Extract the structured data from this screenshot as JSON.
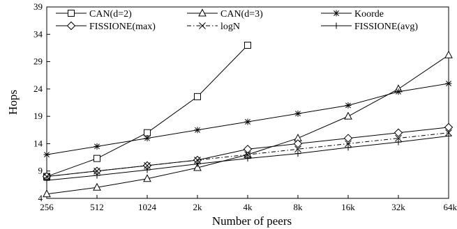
{
  "chart_data": {
    "type": "line",
    "title": "",
    "xlabel": "Number of peers",
    "ylabel": "Hops",
    "categories": [
      "256",
      "512",
      "1024",
      "2k",
      "4k",
      "8k",
      "16k",
      "32k",
      "64k"
    ],
    "ylim": [
      4,
      39
    ],
    "yticks": [
      4,
      9,
      14,
      19,
      24,
      29,
      34,
      39
    ],
    "grid": false,
    "legend_placement": "top-left",
    "series": [
      {
        "name": "CAN(d=2)",
        "marker": "square",
        "dash": "solid",
        "values": [
          8,
          11.3,
          16,
          22.6,
          32,
          null,
          null,
          null,
          null
        ]
      },
      {
        "name": "CAN(d=3)",
        "marker": "triangle",
        "dash": "solid",
        "values": [
          4.8,
          6,
          7.6,
          9.6,
          12,
          15,
          19,
          24,
          30.2
        ]
      },
      {
        "name": "Koorde",
        "marker": "asterisk",
        "dash": "solid",
        "values": [
          12,
          13.5,
          15,
          16.5,
          18,
          19.5,
          21,
          23.5,
          25
        ]
      },
      {
        "name": "FISSIONE(max)",
        "marker": "diamond",
        "dash": "solid",
        "values": [
          8,
          9,
          10,
          11,
          13,
          14,
          15,
          16,
          17
        ]
      },
      {
        "name": "logN",
        "marker": "cross",
        "dash": "dashdot",
        "values": [
          8,
          9,
          10,
          11,
          12,
          13,
          14,
          15,
          16
        ]
      },
      {
        "name": "FISSIONE(avg)",
        "marker": "plus",
        "dash": "solid",
        "values": [
          7.3,
          8.2,
          9.2,
          10.3,
          11.3,
          12.2,
          13.3,
          14.3,
          15.4
        ]
      }
    ]
  }
}
